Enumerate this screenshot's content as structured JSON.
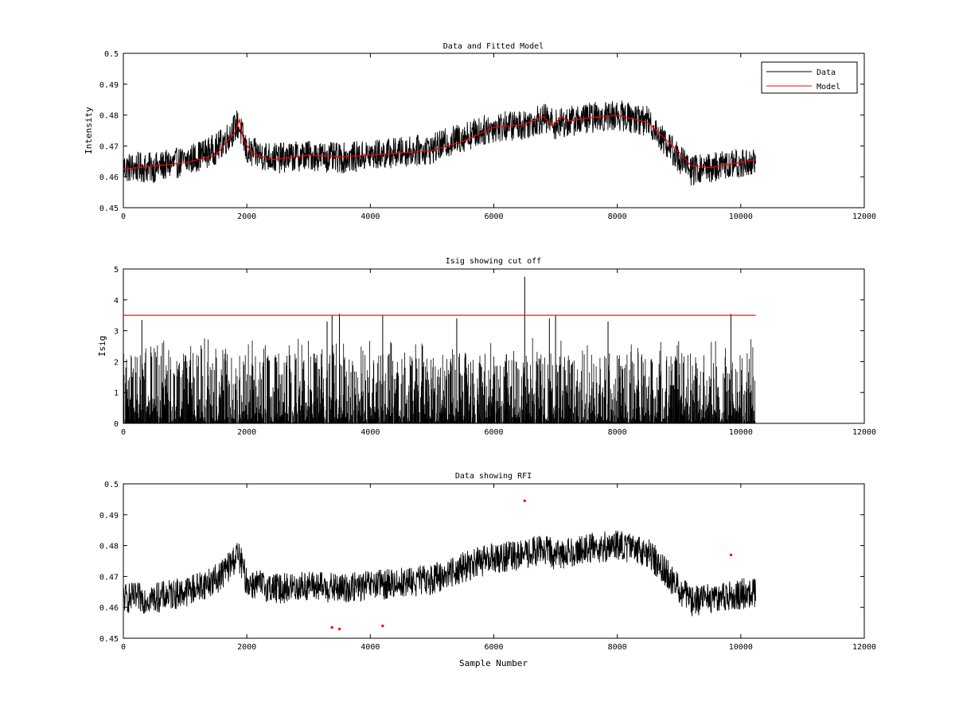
{
  "chart_data": [
    {
      "type": "line",
      "title": "Data and Fitted Model",
      "xlabel": "",
      "ylabel": "Intensity",
      "xlim": [
        0,
        12000
      ],
      "ylim": [
        0.45,
        0.5
      ],
      "xticks": [
        0,
        2000,
        4000,
        6000,
        8000,
        10000,
        12000
      ],
      "xtick_labels": [
        "0",
        "2000",
        "4000",
        "6000",
        "8000",
        "10000",
        "12000"
      ],
      "yticks": [
        0.45,
        0.46,
        0.47,
        0.48,
        0.49,
        0.5
      ],
      "ytick_labels": [
        "0.45",
        "0.46",
        "0.47",
        "0.48",
        "0.49",
        "0.5"
      ],
      "legend": {
        "placement": "top-right",
        "entries": [
          "Data",
          "Model"
        ]
      },
      "grid": false,
      "series": [
        {
          "name": "Data",
          "color": "#000000",
          "noise_amplitude": 0.005,
          "x": [
            0,
            500,
            1000,
            1500,
            1700,
            1850,
            1900,
            2000,
            2500,
            3000,
            3500,
            4000,
            5000,
            5500,
            6000,
            6500,
            6800,
            7000,
            7500,
            8000,
            8500,
            9000,
            9200,
            9500,
            10240
          ],
          "y": [
            0.463,
            0.463,
            0.465,
            0.469,
            0.473,
            0.477,
            0.475,
            0.468,
            0.466,
            0.467,
            0.466,
            0.467,
            0.469,
            0.473,
            0.476,
            0.477,
            0.479,
            0.477,
            0.479,
            0.48,
            0.478,
            0.466,
            0.462,
            0.463,
            0.465
          ]
        },
        {
          "name": "Model",
          "color": "#ff0000",
          "x": [
            0,
            500,
            1000,
            1500,
            1700,
            1800,
            1880,
            1950,
            2100,
            2400,
            3000,
            3500,
            4000,
            5000,
            5500,
            6000,
            6500,
            6800,
            6950,
            7100,
            7200,
            7500,
            8000,
            8500,
            9000,
            9200,
            9500,
            10240
          ],
          "y": [
            0.4625,
            0.4635,
            0.4645,
            0.467,
            0.472,
            0.474,
            0.4785,
            0.4715,
            0.4675,
            0.4655,
            0.467,
            0.4665,
            0.467,
            0.4685,
            0.4715,
            0.476,
            0.477,
            0.4795,
            0.4765,
            0.4795,
            0.478,
            0.479,
            0.48,
            0.4775,
            0.468,
            0.4635,
            0.463,
            0.4655
          ]
        }
      ]
    },
    {
      "type": "line",
      "title": "Isig showing cut off",
      "xlabel": "",
      "ylabel": "Isig",
      "xlim": [
        0,
        12000
      ],
      "ylim": [
        0,
        5
      ],
      "xticks": [
        0,
        2000,
        4000,
        6000,
        8000,
        10000,
        12000
      ],
      "xtick_labels": [
        "0",
        "2000",
        "4000",
        "6000",
        "8000",
        "10000",
        "12000"
      ],
      "yticks": [
        0,
        1,
        2,
        3,
        4,
        5
      ],
      "ytick_labels": [
        "0",
        "1",
        "2",
        "3",
        "4",
        "5"
      ],
      "grid": false,
      "series": [
        {
          "name": "Isig",
          "color": "#000000",
          "x_range": [
            0,
            10240
          ],
          "typical_max": 2.3,
          "spikes": [
            {
              "x": 3380,
              "y": 3.5
            },
            {
              "x": 3500,
              "y": 3.55
            },
            {
              "x": 4200,
              "y": 3.5
            },
            {
              "x": 6500,
              "y": 4.75
            },
            {
              "x": 6900,
              "y": 3.4
            },
            {
              "x": 7000,
              "y": 3.5
            },
            {
              "x": 9840,
              "y": 3.55
            },
            {
              "x": 300,
              "y": 3.35
            },
            {
              "x": 3300,
              "y": 3.3
            },
            {
              "x": 5400,
              "y": 3.4
            },
            {
              "x": 7850,
              "y": 3.3
            }
          ]
        },
        {
          "name": "Cut off",
          "color": "#ff0000",
          "x": [
            0,
            10240
          ],
          "y": [
            3.5,
            3.5
          ]
        }
      ]
    },
    {
      "type": "line",
      "title": "Data showing RFI",
      "xlabel": "Sample Number",
      "ylabel": "",
      "xlim": [
        0,
        12000
      ],
      "ylim": [
        0.45,
        0.5
      ],
      "xticks": [
        0,
        2000,
        4000,
        6000,
        8000,
        10000,
        12000
      ],
      "xtick_labels": [
        "0",
        "2000",
        "4000",
        "6000",
        "8000",
        "10000",
        "12000"
      ],
      "yticks": [
        0.45,
        0.46,
        0.47,
        0.48,
        0.49,
        0.5
      ],
      "ytick_labels": [
        "0.45",
        "0.46",
        "0.47",
        "0.48",
        "0.49",
        "0.5"
      ],
      "grid": false,
      "series": [
        {
          "name": "Data",
          "color": "#000000",
          "noise_amplitude": 0.005,
          "x": [
            0,
            500,
            1000,
            1500,
            1700,
            1850,
            1900,
            2000,
            2500,
            3000,
            3500,
            4000,
            5000,
            5500,
            6000,
            6500,
            6800,
            7000,
            7500,
            8000,
            8500,
            9000,
            9200,
            9500,
            10240
          ],
          "y": [
            0.463,
            0.463,
            0.465,
            0.469,
            0.473,
            0.477,
            0.475,
            0.468,
            0.466,
            0.467,
            0.466,
            0.467,
            0.469,
            0.473,
            0.476,
            0.477,
            0.479,
            0.477,
            0.479,
            0.48,
            0.478,
            0.466,
            0.462,
            0.463,
            0.465
          ]
        },
        {
          "name": "RFI",
          "color": "#ff0000",
          "marker": "point",
          "x": [
            3380,
            3500,
            4200,
            6500,
            9840
          ],
          "y": [
            0.4535,
            0.453,
            0.454,
            0.4945,
            0.477
          ]
        }
      ]
    }
  ]
}
